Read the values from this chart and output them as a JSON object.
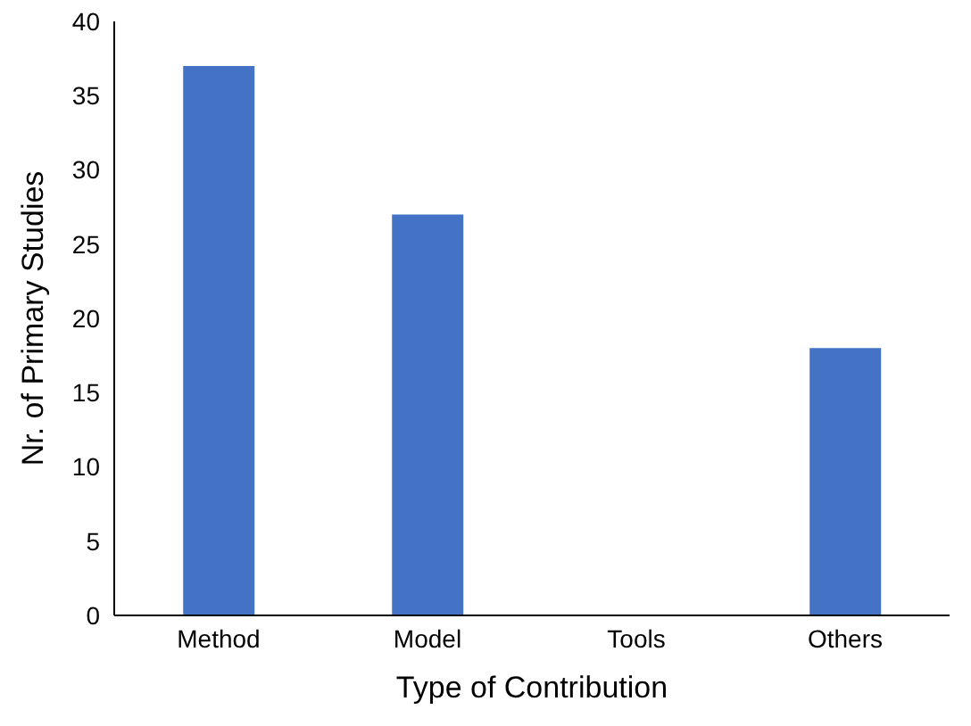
{
  "chart_data": {
    "type": "bar",
    "xlabel": "Type of Contribution",
    "ylabel": "Nr. of Primary Studies",
    "categories": [
      "Method",
      "Model",
      "Tools",
      "Others"
    ],
    "values": [
      37,
      27,
      0,
      18
    ],
    "color": "#4472c4",
    "ylim": [
      0,
      40
    ],
    "yticks": [
      0,
      5,
      10,
      15,
      20,
      25,
      30,
      35,
      40
    ],
    "grid": false
  }
}
